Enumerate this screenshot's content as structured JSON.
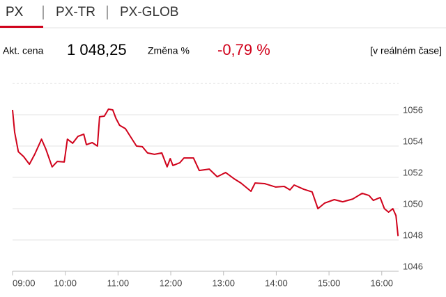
{
  "tabs": [
    "PX",
    "PX-TR",
    "PX-GLOB"
  ],
  "quote": {
    "price_label": "Akt. cena",
    "price": "1 048,25",
    "change_label": "Změna %",
    "change": "-0,79 %",
    "mode": "[v reálném čase]"
  },
  "chart_data": {
    "type": "line",
    "x": [
      9.0,
      9.04,
      9.11,
      9.21,
      9.32,
      9.42,
      9.55,
      9.63,
      9.75,
      9.85,
      9.98,
      10.04,
      10.14,
      10.24,
      10.35,
      10.4,
      10.51,
      10.61,
      10.65,
      10.74,
      10.82,
      10.9,
      10.96,
      11.03,
      11.14,
      11.25,
      11.35,
      11.46,
      11.56,
      11.69,
      11.83,
      11.93,
      11.99,
      12.04,
      12.17,
      12.25,
      12.43,
      12.54,
      12.73,
      12.88,
      13.04,
      13.2,
      13.33,
      13.52,
      13.6,
      13.78,
      13.99,
      14.15,
      14.26,
      14.34,
      14.52,
      14.68,
      14.79,
      14.92,
      15.1,
      15.26,
      15.45,
      15.63,
      15.76,
      15.84,
      15.97,
      16.05,
      16.13,
      16.21,
      16.27,
      16.31
    ],
    "series": [
      {
        "color": "#d0021b",
        "values": [
          1056.31,
          1054.89,
          1053.64,
          1053.33,
          1052.84,
          1053.47,
          1054.44,
          1053.82,
          1052.67,
          1053.02,
          1052.98,
          1054.44,
          1054.18,
          1054.62,
          1054.76,
          1054.09,
          1054.22,
          1054.0,
          1055.87,
          1055.91,
          1056.36,
          1056.31,
          1055.78,
          1055.33,
          1055.11,
          1054.53,
          1054.0,
          1053.96,
          1053.56,
          1053.47,
          1053.56,
          1052.67,
          1053.2,
          1052.76,
          1052.93,
          1053.24,
          1053.24,
          1052.44,
          1052.53,
          1052.04,
          1052.31,
          1051.91,
          1051.64,
          1051.11,
          1051.64,
          1051.6,
          1051.38,
          1051.42,
          1051.2,
          1051.51,
          1051.24,
          1051.07,
          1050.0,
          1050.36,
          1050.58,
          1050.44,
          1050.62,
          1050.98,
          1050.84,
          1050.53,
          1050.71,
          1050.0,
          1049.78,
          1050.0,
          1049.56,
          1048.25
        ]
      }
    ],
    "xlim": [
      9,
      16.32
    ],
    "xticks": [
      {
        "value": 9,
        "label": "09:00"
      },
      {
        "value": 10,
        "label": "10:00"
      },
      {
        "value": 11,
        "label": "11:00"
      },
      {
        "value": 12,
        "label": "12:00"
      },
      {
        "value": 13,
        "label": "13:00"
      },
      {
        "value": 14,
        "label": "14:00"
      },
      {
        "value": 15,
        "label": "15:00"
      },
      {
        "value": 16,
        "label": "16:00"
      }
    ],
    "ylim": [
      1046,
      1058
    ],
    "yticks": [
      1046,
      1048,
      1050,
      1052,
      1054,
      1056
    ],
    "grid": true
  }
}
